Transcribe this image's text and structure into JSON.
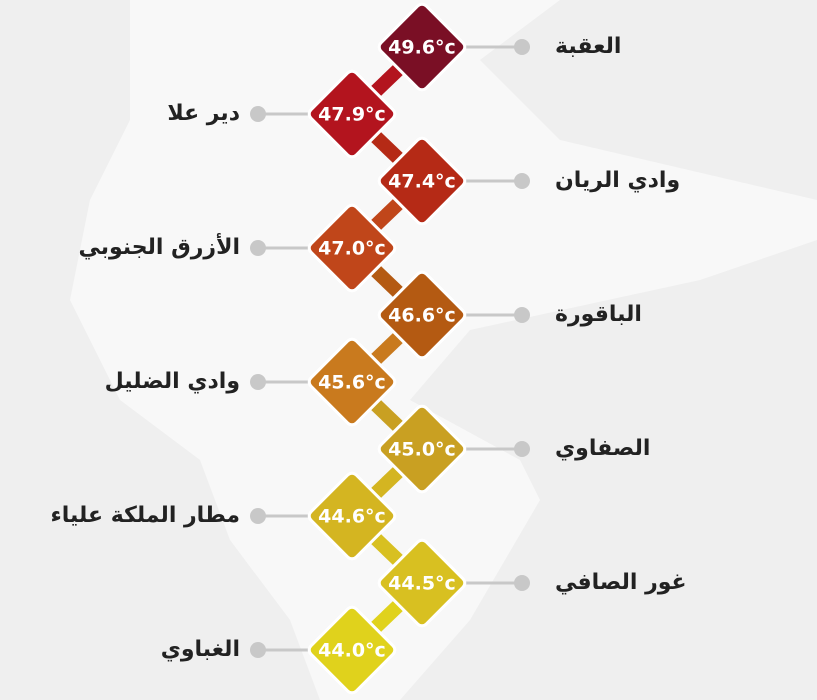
{
  "chart_data": {
    "type": "ladder",
    "categories": [
      "العقبة",
      "دير علا",
      "وادي الريان",
      "الأزرق الجنوبي",
      "الباقورة",
      "وادي الضليل",
      "الصفاوي",
      "مطار الملكة علياء",
      "غور الصافي",
      "الغباوي"
    ],
    "values": [
      49.6,
      47.9,
      47.4,
      47.0,
      46.6,
      45.6,
      45.0,
      44.6,
      44.5,
      44.0
    ],
    "value_labels": [
      "49.6°c",
      "47.9°c",
      "47.4°c",
      "47.0°c",
      "46.6°c",
      "45.6°c",
      "45.0°c",
      "44.6°c",
      "44.5°c",
      "44.0°c"
    ],
    "colors": [
      "#7a0f25",
      "#b3141e",
      "#b52a16",
      "#c0461a",
      "#b45a12",
      "#c97a1e",
      "#c9a022",
      "#d4b521",
      "#d8c021",
      "#e0d21c"
    ]
  }
}
